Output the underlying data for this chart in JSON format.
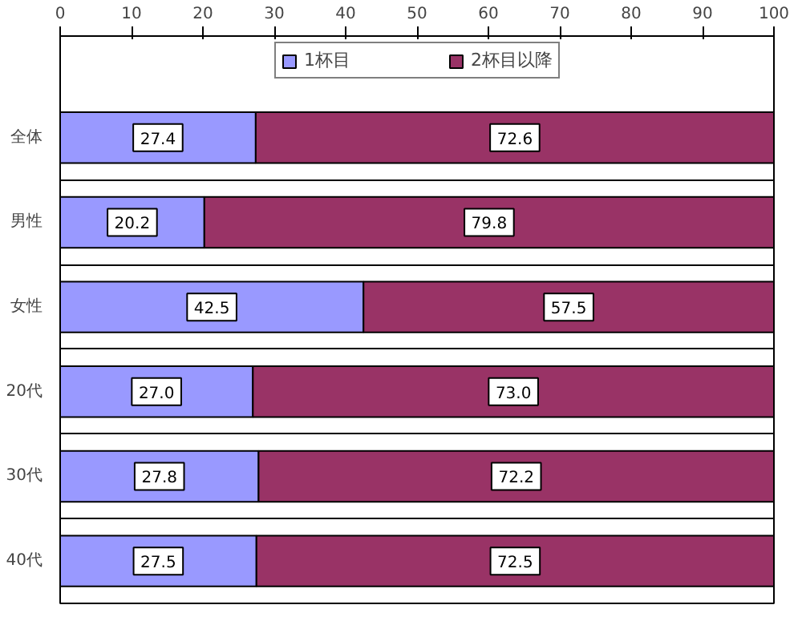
{
  "chart_data": {
    "type": "bar",
    "orientation": "horizontal",
    "stacked": true,
    "categories": [
      "全体",
      "男性",
      "女性",
      "20代",
      "30代",
      "40代"
    ],
    "series": [
      {
        "name": "1杯目",
        "color": "#9999ff",
        "values": [
          27.4,
          20.2,
          42.5,
          27.0,
          27.8,
          27.5
        ],
        "value_labels": [
          "27.4",
          "20.2",
          "42.5",
          "27.0",
          "27.8",
          "27.5"
        ]
      },
      {
        "name": "2杯目以降",
        "color": "#993366",
        "values": [
          72.6,
          79.8,
          57.5,
          73.0,
          72.2,
          72.5
        ],
        "value_labels": [
          "72.6",
          "79.8",
          "57.5",
          "73.0",
          "72.2",
          "72.5"
        ]
      }
    ],
    "xlim": [
      0,
      100
    ],
    "xticks": [
      0,
      10,
      20,
      30,
      40,
      50,
      60,
      70,
      80,
      90,
      100
    ],
    "grid": "y",
    "legend": "top"
  }
}
